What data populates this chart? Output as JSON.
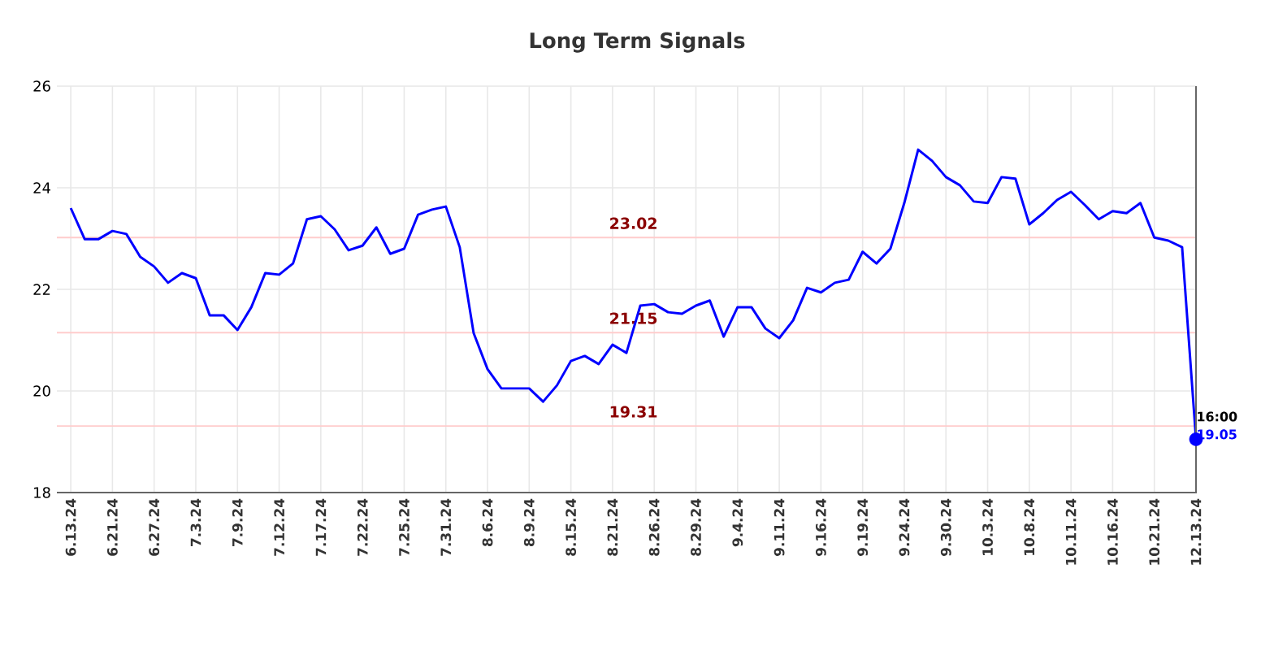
{
  "chart_data": {
    "type": "line",
    "title": "Long Term Signals",
    "categories": [
      "6.13.24",
      null,
      null,
      "6.21.24",
      null,
      null,
      "6.27.24",
      null,
      null,
      "7.3.24",
      null,
      null,
      "7.9.24",
      null,
      null,
      "7.12.24",
      null,
      null,
      "7.17.24",
      null,
      null,
      "7.22.24",
      null,
      null,
      "7.25.24",
      null,
      null,
      "7.31.24",
      null,
      null,
      "8.6.24",
      null,
      null,
      "8.9.24",
      null,
      null,
      "8.15.24",
      null,
      null,
      "8.21.24",
      null,
      null,
      "8.26.24",
      null,
      null,
      "8.29.24",
      null,
      null,
      "9.4.24",
      null,
      null,
      "9.11.24",
      null,
      null,
      "9.16.24",
      null,
      null,
      "9.19.24",
      null,
      null,
      "9.24.24",
      null,
      null,
      "9.30.24",
      null,
      null,
      "10.3.24",
      null,
      null,
      "10.8.24",
      null,
      null,
      "10.11.24",
      null,
      null,
      "10.16.24",
      null,
      null,
      "10.21.24",
      null,
      null,
      "12.13.24"
    ],
    "series": [
      {
        "color": "#0000ff",
        "marker": "none",
        "values": [
          23.6,
          22.99,
          22.99,
          23.15,
          23.09,
          22.64,
          22.45,
          22.13,
          22.32,
          22.22,
          21.49,
          21.49,
          21.2,
          21.65,
          22.32,
          22.29,
          22.51,
          23.38,
          23.44,
          23.18,
          22.77,
          22.86,
          23.22,
          22.7,
          22.8,
          23.47,
          23.57,
          23.63,
          22.83,
          21.14,
          20.43,
          20.05,
          20.05,
          20.05,
          19.79,
          20.11,
          20.59,
          20.69,
          20.53,
          20.91,
          20.75,
          21.68,
          21.71,
          21.55,
          21.52,
          21.68,
          21.78,
          21.07,
          21.65,
          21.65,
          21.23,
          21.04,
          21.39,
          22.03,
          21.94,
          22.13,
          22.19,
          22.74,
          22.51,
          22.8,
          23.7,
          24.75,
          24.53,
          24.21,
          24.05,
          23.73,
          23.7,
          24.21,
          24.18,
          23.28,
          23.5,
          23.76,
          23.92,
          23.66,
          23.38,
          23.54,
          23.5,
          23.7,
          23.02,
          22.96,
          22.83,
          19.05
        ]
      },
      {
        "type": "scatter",
        "color": "#0000ff",
        "x": [
          "12.13.24"
        ],
        "values": [
          19.05
        ]
      }
    ],
    "ylim": [
      18,
      26
    ],
    "yticks": [
      18,
      20,
      22,
      24,
      26
    ],
    "grid": true,
    "marker": "circle",
    "line_style": "solid",
    "ref_lines": [
      {
        "axis": "y",
        "value": 23.02,
        "label": "23.02",
        "color": "#ffcccc"
      },
      {
        "axis": "y",
        "value": 21.15,
        "label": "21.15",
        "color": "#ffcccc"
      },
      {
        "axis": "y",
        "value": 19.31,
        "label": "19.31",
        "color": "#ffcccc"
      }
    ],
    "annotations": [
      {
        "text": "16:00",
        "x": "12.13.24",
        "y": 19.05
      },
      {
        "text": "19.05",
        "x": "12.13.24",
        "y": 19.05
      }
    ]
  }
}
